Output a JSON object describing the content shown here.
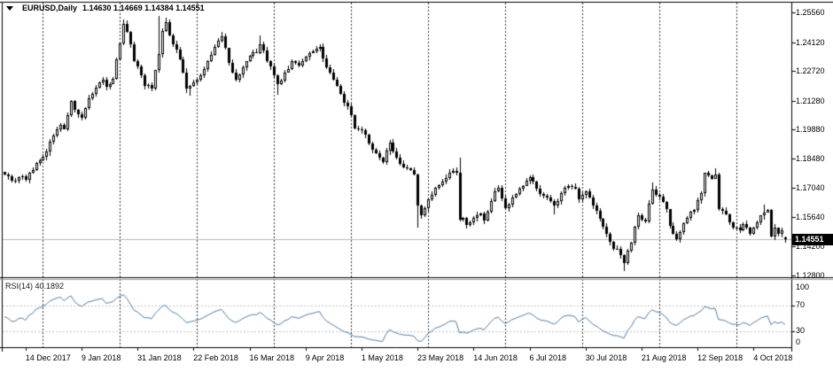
{
  "header": {
    "symbol_timeframe": "EURUSD,Daily",
    "ohlc_readout": "1.14630 1.14669 1.14384 1.14551"
  },
  "chart_data": {
    "type": "candlestick",
    "title": "EURUSD,Daily",
    "symbol": "EURUSD",
    "timeframe": "Daily",
    "bars_visible": 224,
    "last_bar": {
      "open": "1.14630",
      "high": "1.14669",
      "low": "1.14384",
      "close": "1.14551"
    },
    "price_axis": {
      "ticks": [
        "1.25560",
        "1.24120",
        "1.22720",
        "1.21280",
        "1.19880",
        "1.18480",
        "1.17040",
        "1.15640",
        "1.14200",
        "1.12800"
      ],
      "current_price": "1.14551",
      "ylim": [
        1.128,
        1.2556
      ]
    },
    "time_axis": {
      "labels": [
        "14 Dec 2017",
        "9 Jan 2018",
        "31 Jan 2018",
        "22 Feb 2018",
        "16 Mar 2018",
        "9 Apr 2018",
        "1 May 2018",
        "23 May 2018",
        "14 Jun 2018",
        "6 Jul 2018",
        "30 Jul 2018",
        "21 Aug 2018",
        "12 Sep 2018",
        "4 Oct 2018"
      ],
      "first_label_bar": 6,
      "label_step_bars": 16
    },
    "grid": {
      "first_line_bar": 11,
      "line_step_bars": 22,
      "vertical_only": true
    },
    "price_anchors": [
      [
        0,
        1.177
      ],
      [
        2,
        1.174
      ],
      [
        4,
        1.1755
      ],
      [
        6,
        1.1745
      ],
      [
        8,
        1.179
      ],
      [
        10,
        1.184
      ],
      [
        12,
        1.188
      ],
      [
        14,
        1.196
      ],
      [
        16,
        1.201
      ],
      [
        17,
        1.199
      ],
      [
        19,
        1.2125
      ],
      [
        20,
        1.2085
      ],
      [
        22,
        1.2045
      ],
      [
        24,
        1.214
      ],
      [
        26,
        1.219
      ],
      [
        28,
        1.223
      ],
      [
        29,
        1.2195
      ],
      [
        31,
        1.2235
      ],
      [
        33,
        1.2405
      ],
      [
        34,
        1.25
      ],
      [
        35,
        1.246
      ],
      [
        37,
        1.232
      ],
      [
        39,
        1.225
      ],
      [
        40,
        1.22
      ],
      [
        42,
        1.2185
      ],
      [
        44,
        1.2355
      ],
      [
        45,
        1.2465
      ],
      [
        46,
        1.251
      ],
      [
        48,
        1.24
      ],
      [
        50,
        1.233
      ],
      [
        52,
        1.2185
      ],
      [
        54,
        1.2215
      ],
      [
        56,
        1.225
      ],
      [
        58,
        1.232
      ],
      [
        60,
        1.239
      ],
      [
        62,
        1.244
      ],
      [
        64,
        1.231
      ],
      [
        66,
        1.223
      ],
      [
        68,
        1.229
      ],
      [
        70,
        1.2345
      ],
      [
        72,
        1.236
      ],
      [
        73,
        1.24
      ],
      [
        75,
        1.232
      ],
      [
        77,
        1.225
      ],
      [
        78,
        1.221
      ],
      [
        80,
        1.2265
      ],
      [
        82,
        1.232
      ],
      [
        84,
        1.23
      ],
      [
        86,
        1.234
      ],
      [
        88,
        1.2365
      ],
      [
        90,
        1.239
      ],
      [
        92,
        1.229
      ],
      [
        94,
        1.223
      ],
      [
        96,
        1.216
      ],
      [
        98,
        1.21
      ],
      [
        100,
        1.1995
      ],
      [
        102,
        1.1985
      ],
      [
        104,
        1.192
      ],
      [
        106,
        1.1875
      ],
      [
        108,
        1.183
      ],
      [
        110,
        1.1925
      ],
      [
        112,
        1.185
      ],
      [
        114,
        1.1805
      ],
      [
        116,
        1.179
      ],
      [
        117,
        1.177
      ],
      [
        118,
        1.162
      ],
      [
        119,
        1.157
      ],
      [
        120,
        1.1605
      ],
      [
        121,
        1.165
      ],
      [
        123,
        1.1705
      ],
      [
        125,
        1.1735
      ],
      [
        127,
        1.178
      ],
      [
        129,
        1.1778
      ],
      [
        130,
        1.1551
      ],
      [
        131,
        1.156
      ],
      [
        132,
        1.1525
      ],
      [
        134,
        1.156
      ],
      [
        136,
        1.158
      ],
      [
        137,
        1.1545
      ],
      [
        139,
        1.164
      ],
      [
        140,
        1.169
      ],
      [
        141,
        1.1705
      ],
      [
        143,
        1.1605
      ],
      [
        145,
        1.166
      ],
      [
        147,
        1.17
      ],
      [
        149,
        1.174
      ],
      [
        150,
        1.1755
      ],
      [
        152,
        1.17
      ],
      [
        154,
        1.1665
      ],
      [
        156,
        1.164
      ],
      [
        157,
        1.162
      ],
      [
        159,
        1.168
      ],
      [
        161,
        1.1712
      ],
      [
        163,
        1.17
      ],
      [
        164,
        1.1648
      ],
      [
        166,
        1.169
      ],
      [
        168,
        1.162
      ],
      [
        170,
        1.1556
      ],
      [
        172,
        1.148
      ],
      [
        174,
        1.1411
      ],
      [
        175,
        1.1408
      ],
      [
        177,
        1.134
      ],
      [
        179,
        1.144
      ],
      [
        181,
        1.157
      ],
      [
        183,
        1.154
      ],
      [
        185,
        1.1695
      ],
      [
        187,
        1.1662
      ],
      [
        189,
        1.1601
      ],
      [
        190,
        1.152
      ],
      [
        192,
        1.1455
      ],
      [
        193,
        1.149
      ],
      [
        195,
        1.156
      ],
      [
        197,
        1.16
      ],
      [
        199,
        1.168
      ],
      [
        200,
        1.1777
      ],
      [
        202,
        1.175
      ],
      [
        203,
        1.177
      ],
      [
        204,
        1.1604
      ],
      [
        206,
        1.1577
      ],
      [
        208,
        1.1514
      ],
      [
        210,
        1.15
      ],
      [
        211,
        1.153
      ],
      [
        213,
        1.148
      ],
      [
        214,
        1.1514
      ],
      [
        216,
        1.157
      ],
      [
        218,
        1.16
      ],
      [
        219,
        1.147
      ],
      [
        220,
        1.151
      ],
      [
        221,
        1.148
      ],
      [
        222,
        1.15
      ],
      [
        223,
        1.14551
      ]
    ],
    "bar_extremes": {
      "34": {
        "h": 1.2522
      },
      "44": {
        "h": 1.2537
      },
      "46": {
        "h": 1.253
      },
      "53": {
        "l": 1.215
      },
      "62": {
        "h": 1.246
      },
      "73": {
        "h": 1.2445
      },
      "78": {
        "l": 1.2155
      },
      "108": {
        "l": 1.1823
      },
      "118": {
        "l": 1.151
      },
      "130": {
        "h": 1.1852
      },
      "132": {
        "l": 1.1508
      },
      "157": {
        "l": 1.1575
      },
      "177": {
        "l": 1.1301
      },
      "185": {
        "h": 1.1733
      },
      "203": {
        "h": 1.1798
      },
      "217": {
        "h": 1.1625
      },
      "223": {
        "o": 1.1463,
        "h": 1.14669,
        "l": 1.14384,
        "c": 1.14551
      }
    },
    "rsi": {
      "label": "RSI(14)",
      "value": "40.1892",
      "period": 14,
      "levels": [
        70,
        30
      ],
      "scale_labels": [
        "100",
        "70",
        "30",
        "0"
      ],
      "scale_values": [
        100,
        70,
        30,
        0
      ]
    },
    "colors": {
      "background": "#ffffff",
      "foreground": "#000000",
      "bull_body": "#ffffff",
      "bear_body": "#000000",
      "candle_outline": "#000000",
      "grid": "#333333",
      "rsi_line": "#4d7ea8",
      "rsi_levels": "#c4c4c4",
      "price_line": "#b8b8b8",
      "tag_bg": "#000000",
      "tag_text": "#ffffff"
    }
  }
}
